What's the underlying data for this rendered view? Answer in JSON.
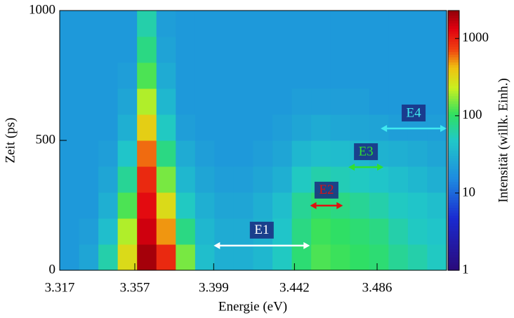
{
  "chart_data": {
    "type": "heatmap",
    "x_label": "Energie (eV)",
    "y_label": "Zeit (ps)",
    "colorbar_label": "Intensität (willk. Einh.)",
    "xlim": [
      3.317,
      3.523
    ],
    "xticks": [
      3.317,
      3.357,
      3.399,
      3.442,
      3.486
    ],
    "ylim": [
      0,
      1000
    ],
    "yticks": [
      0,
      500,
      1000
    ],
    "clim": [
      1,
      2300
    ],
    "cticks": [
      1,
      10,
      100,
      1000
    ],
    "color_log": true,
    "colorscale": [
      [
        0,
        "#2a0a7a"
      ],
      [
        0.2,
        "#1a2ad0"
      ],
      [
        0.35,
        "#1e8ae0"
      ],
      [
        0.5,
        "#20c8c8"
      ],
      [
        0.6,
        "#30e060"
      ],
      [
        0.7,
        "#c8f020"
      ],
      [
        0.78,
        "#f0c010"
      ],
      [
        0.85,
        "#f04010"
      ],
      [
        0.93,
        "#e00010"
      ],
      [
        1,
        "#900008"
      ]
    ],
    "x_bins": [
      3.317,
      3.3273,
      3.3376,
      3.3479,
      3.3582,
      3.3685,
      3.3788,
      3.3891,
      3.3994,
      3.4097,
      3.42,
      3.4303,
      3.4406,
      3.4509,
      3.4612,
      3.4715,
      3.4818,
      3.4921,
      3.5024,
      3.5127,
      3.523
    ],
    "y_bins": [
      0,
      100,
      200,
      300,
      400,
      500,
      600,
      700,
      800,
      900,
      1000
    ],
    "z": [
      [
        20,
        25,
        60,
        300,
        2000,
        900,
        150,
        40,
        30,
        30,
        35,
        50,
        90,
        120,
        110,
        100,
        90,
        70,
        60,
        50
      ],
      [
        20,
        22,
        40,
        200,
        1500,
        500,
        80,
        35,
        28,
        28,
        32,
        45,
        80,
        110,
        100,
        90,
        80,
        60,
        50,
        45
      ],
      [
        20,
        20,
        30,
        120,
        1200,
        300,
        50,
        30,
        25,
        25,
        30,
        40,
        70,
        90,
        80,
        70,
        60,
        50,
        45,
        40
      ],
      [
        20,
        20,
        25,
        70,
        900,
        150,
        35,
        25,
        22,
        22,
        25,
        30,
        50,
        60,
        55,
        50,
        45,
        40,
        35,
        30
      ],
      [
        20,
        20,
        22,
        45,
        600,
        80,
        28,
        22,
        20,
        20,
        22,
        25,
        35,
        40,
        38,
        35,
        32,
        30,
        28,
        25
      ],
      [
        20,
        20,
        20,
        30,
        350,
        50,
        22,
        20,
        20,
        20,
        20,
        22,
        25,
        28,
        26,
        25,
        24,
        22,
        22,
        22
      ],
      [
        20,
        20,
        20,
        25,
        200,
        35,
        20,
        20,
        20,
        20,
        20,
        20,
        22,
        22,
        22,
        22,
        20,
        20,
        20,
        20
      ],
      [
        20,
        20,
        20,
        22,
        120,
        28,
        20,
        20,
        20,
        20,
        20,
        20,
        20,
        20,
        20,
        20,
        20,
        20,
        20,
        20
      ],
      [
        20,
        20,
        20,
        20,
        80,
        24,
        20,
        20,
        20,
        20,
        20,
        20,
        20,
        20,
        20,
        20,
        20,
        20,
        20,
        20
      ],
      [
        20,
        20,
        20,
        20,
        60,
        22,
        20,
        20,
        20,
        20,
        20,
        20,
        20,
        20,
        20,
        20,
        20,
        20,
        20,
        20
      ]
    ],
    "annotations": [
      {
        "text": "E1",
        "color": "#ffffff",
        "x": [
          3.399,
          3.4502
        ],
        "y": 95
      },
      {
        "text": "E2",
        "color": "#e01010",
        "x": [
          3.4503,
          3.4678
        ],
        "y": 249
      },
      {
        "text": "E3",
        "color": "#30e030",
        "x": [
          3.4707,
          3.4894
        ],
        "y": 397
      },
      {
        "text": "E4",
        "color": "#40e8f0",
        "x": [
          3.4879,
          3.523
        ],
        "y": 546
      }
    ]
  }
}
